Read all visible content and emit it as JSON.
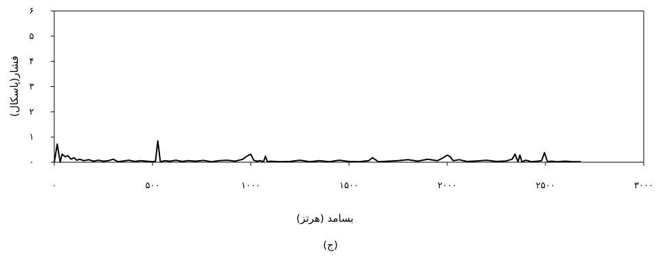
{
  "chart_data": {
    "type": "line",
    "title": "",
    "caption": "(ج)",
    "xlabel": "بسامد (هرتز)",
    "ylabel": "فشار(پاسکال)",
    "xlim": [
      0,
      3000
    ],
    "ylim": [
      0,
      6
    ],
    "x_ticks": [
      0,
      500,
      1000,
      1500,
      2000,
      2500,
      3000
    ],
    "y_ticks": [
      0,
      1,
      2,
      3,
      4,
      5,
      6
    ],
    "x_tick_labels": [
      "۰",
      "۵۰۰",
      "۱۰۰۰",
      "۱۵۰۰",
      "۲۰۰۰",
      "۲۵۰۰",
      "۳۰۰۰"
    ],
    "y_tick_labels": [
      "۰",
      "۱",
      "۲",
      "۳",
      "۴",
      "۵",
      "۶"
    ],
    "grid": false,
    "legend": "none",
    "line_color": "#000000",
    "series": [
      {
        "x": [
          0,
          15,
          30,
          40,
          55,
          70,
          85,
          100,
          115,
          130,
          150,
          175,
          200,
          225,
          250,
          275,
          300,
          325,
          350,
          380,
          410,
          440,
          470,
          500,
          515,
          527,
          540,
          560,
          590,
          620,
          650,
          680,
          720,
          760,
          800,
          840,
          880,
          920,
          960,
          980,
          1000,
          1015,
          1030,
          1050,
          1065,
          1075,
          1085,
          1100,
          1150,
          1200,
          1250,
          1300,
          1350,
          1400,
          1450,
          1500,
          1550,
          1600,
          1620,
          1650,
          1700,
          1750,
          1800,
          1850,
          1900,
          1950,
          1980,
          2000,
          2015,
          2030,
          2060,
          2100,
          2150,
          2200,
          2250,
          2300,
          2330,
          2345,
          2360,
          2370,
          2380,
          2400,
          2430,
          2460,
          2480,
          2495,
          2510,
          2530,
          2560,
          2600,
          2640,
          2680
        ],
        "y": [
          0.0,
          0.72,
          0.0,
          0.32,
          0.22,
          0.26,
          0.12,
          0.18,
          0.08,
          0.12,
          0.06,
          0.1,
          0.04,
          0.08,
          0.04,
          0.06,
          0.12,
          0.02,
          0.05,
          0.08,
          0.03,
          0.06,
          0.04,
          0.02,
          0.04,
          0.85,
          0.02,
          0.06,
          0.04,
          0.08,
          0.03,
          0.06,
          0.04,
          0.07,
          0.02,
          0.06,
          0.08,
          0.04,
          0.12,
          0.24,
          0.32,
          0.08,
          0.04,
          0.06,
          0.02,
          0.24,
          0.02,
          0.04,
          0.02,
          0.03,
          0.08,
          0.02,
          0.06,
          0.02,
          0.08,
          0.03,
          0.02,
          0.06,
          0.18,
          0.02,
          0.04,
          0.06,
          0.1,
          0.04,
          0.12,
          0.06,
          0.18,
          0.28,
          0.22,
          0.06,
          0.1,
          0.03,
          0.05,
          0.08,
          0.03,
          0.05,
          0.12,
          0.32,
          0.02,
          0.28,
          0.02,
          0.08,
          0.02,
          0.04,
          0.06,
          0.38,
          0.02,
          0.04,
          0.02,
          0.04,
          0.02,
          0.02
        ]
      }
    ]
  }
}
